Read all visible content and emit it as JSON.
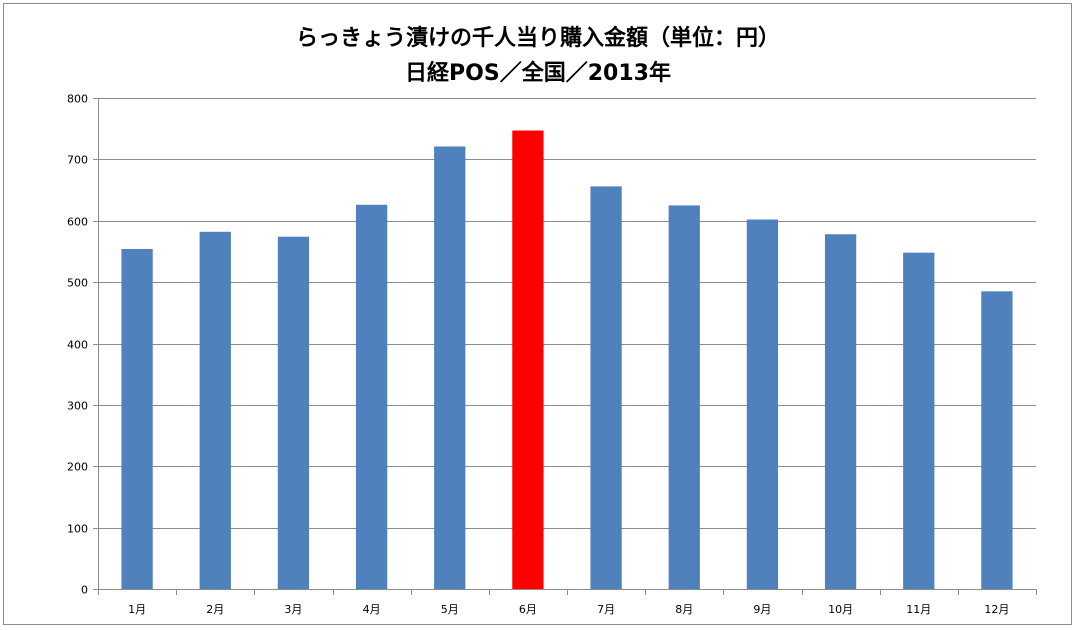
{
  "chart_data": {
    "type": "bar",
    "title": "らっきょう漬けの千人当り購入金額（単位：円）",
    "subtitle": "日経POS／全国／2013年",
    "categories": [
      "1月",
      "2月",
      "3月",
      "4月",
      "5月",
      "6月",
      "7月",
      "8月",
      "9月",
      "10月",
      "11月",
      "12月"
    ],
    "values": [
      554,
      582,
      574,
      626,
      721,
      747,
      656,
      625,
      602,
      578,
      548,
      485
    ],
    "ylim": [
      0,
      800
    ],
    "yticks": [
      0,
      100,
      200,
      300,
      400,
      500,
      600,
      700,
      800
    ],
    "grid": true,
    "legend": "none",
    "colors": {
      "default_bar": "#4f81bd",
      "highlight_bar": "#ff0000",
      "highlight_index": 5
    }
  }
}
